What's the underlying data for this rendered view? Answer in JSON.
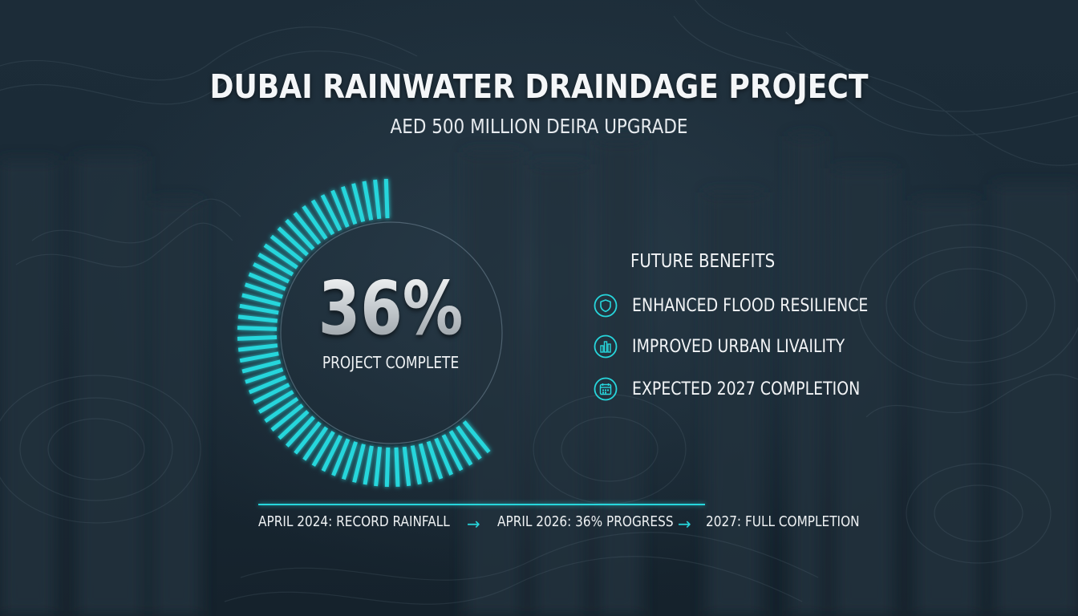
{
  "header": {
    "title": "DUBAI RAINWATER DRAINDAGE PROJECT",
    "subtitle": "AED 500 MILLION DEIRA UPGRADE"
  },
  "progress": {
    "value_text": "36%",
    "value": 36,
    "label": "PROJECT COMPLETE"
  },
  "benefits": {
    "title": "FUTURE BENEFITS",
    "items": [
      {
        "label": "ENHANCED FLOOD RESILIENCE",
        "icon": "shield-icon"
      },
      {
        "label": "IMPROVED URBAN LIVAILITY",
        "icon": "city-icon"
      },
      {
        "label": "EXPECTED 2027 COMPLETION",
        "icon": "calendar-icon"
      }
    ]
  },
  "timeline": {
    "items": [
      "APRIL 2024: RECORD RAINFALL",
      "APRIL 2026: 36% PROGRESS",
      "2027: FULL COMPLETION"
    ],
    "arrow": "→"
  },
  "colors": {
    "accent": "#27d6dc",
    "background": "#1a2a36",
    "text": "#f2f4f6"
  }
}
